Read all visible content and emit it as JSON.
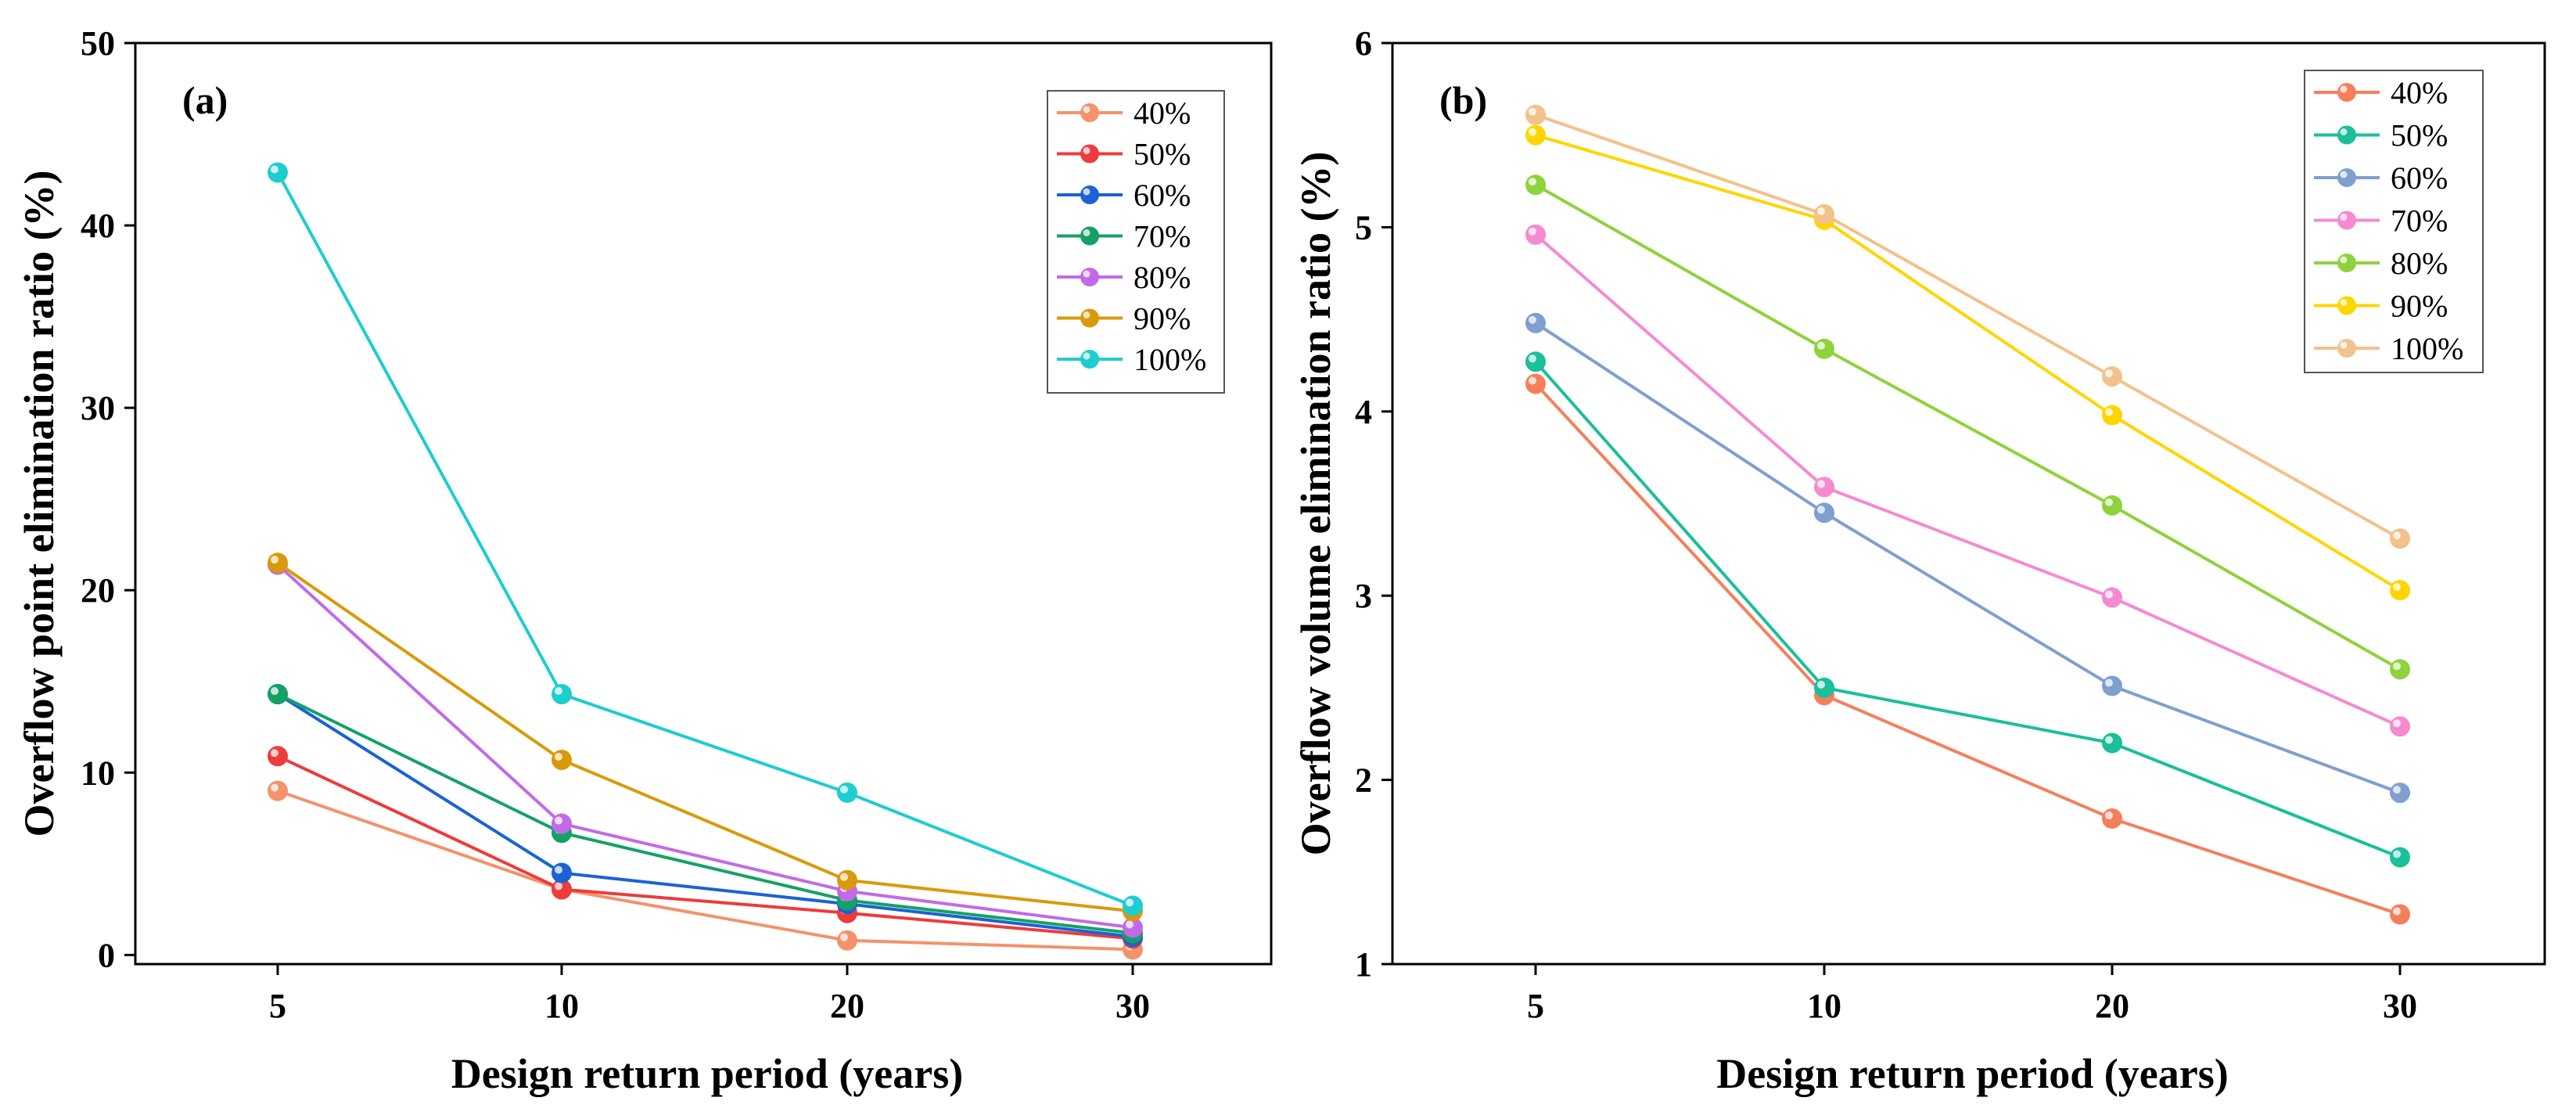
{
  "chart_data": [
    {
      "type": "line",
      "panel_label": "(a)",
      "title": "",
      "xlabel": "Design return period (years)",
      "ylabel": "Overflow point elimination ratio (%)",
      "categories": [
        "5",
        "10",
        "20",
        "30"
      ],
      "ylim": [
        -0.5,
        50
      ],
      "yticks": [
        0,
        10,
        20,
        30,
        40,
        50
      ],
      "legend_position": "top-right",
      "series": [
        {
          "name": "40%",
          "color": "#f4926a",
          "values": [
            9.0,
            3.6,
            0.8,
            0.3
          ]
        },
        {
          "name": "50%",
          "color": "#ee3b3b",
          "values": [
            10.9,
            3.6,
            2.3,
            0.9
          ]
        },
        {
          "name": "60%",
          "color": "#1a62d6",
          "values": [
            14.3,
            4.5,
            2.8,
            1.0
          ]
        },
        {
          "name": "70%",
          "color": "#14a166",
          "values": [
            14.3,
            6.7,
            3.0,
            1.2
          ]
        },
        {
          "name": "80%",
          "color": "#c16ae8",
          "values": [
            21.4,
            7.2,
            3.5,
            1.5
          ]
        },
        {
          "name": "90%",
          "color": "#d99a0a",
          "values": [
            21.5,
            10.7,
            4.1,
            2.4
          ]
        },
        {
          "name": "100%",
          "color": "#1ecdd0",
          "values": [
            42.9,
            14.3,
            8.9,
            2.7
          ]
        }
      ]
    },
    {
      "type": "line",
      "panel_label": "(b)",
      "title": "",
      "xlabel": "Design return period (years)",
      "ylabel": "Overflow volume elimination ratio (%)",
      "categories": [
        "5",
        "10",
        "20",
        "30"
      ],
      "ylim": [
        1,
        6
      ],
      "yticks": [
        1,
        2,
        3,
        4,
        5,
        6
      ],
      "legend_position": "top-right",
      "series": [
        {
          "name": "40%",
          "color": "#f57f5b",
          "values": [
            4.15,
            2.46,
            1.79,
            1.27
          ]
        },
        {
          "name": "50%",
          "color": "#1bbf9a",
          "values": [
            4.27,
            2.5,
            2.2,
            1.58
          ]
        },
        {
          "name": "60%",
          "color": "#7f9fcf",
          "values": [
            4.48,
            3.45,
            2.51,
            1.93
          ]
        },
        {
          "name": "70%",
          "color": "#f58ad0",
          "values": [
            4.96,
            3.59,
            2.99,
            2.29
          ]
        },
        {
          "name": "80%",
          "color": "#8fd23c",
          "values": [
            5.23,
            4.34,
            3.49,
            2.6
          ]
        },
        {
          "name": "90%",
          "color": "#ffd500",
          "values": [
            5.5,
            5.04,
            3.98,
            3.03
          ]
        },
        {
          "name": "100%",
          "color": "#f2c18c",
          "values": [
            5.61,
            5.07,
            4.19,
            3.31
          ]
        }
      ]
    }
  ]
}
